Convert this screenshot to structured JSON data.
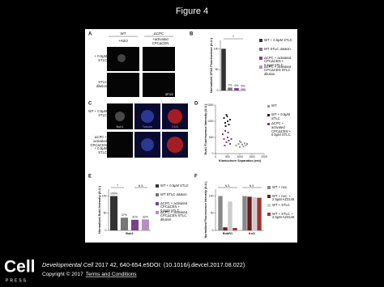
{
  "header": {
    "title": "Figure 4"
  },
  "figure": {
    "a": {
      "letter": "A",
      "groups": [
        "WT",
        "ΔCPC"
      ],
      "columns": [
        "+H2O",
        "+activated CPCΔCEN"
      ],
      "rows": [
        "+ 0.5μM STLC",
        "STLC dilution"
      ],
      "stain": "3F3/2"
    },
    "b": {
      "letter": "B",
      "chart": {
        "type": "bar",
        "ylabel": "Normalized 3F3/2 Fluorescence (A.U.)",
        "values": [
          100,
          7,
          6,
          5
        ],
        "value_labels": [
          null,
          "7%",
          "6%",
          "5%"
        ],
        "colors": [
          "#333333",
          "#777777",
          "#7b3f8c",
          "#b48ec4"
        ],
        "ylim": [
          0,
          120
        ],
        "yticks": [
          0,
          50,
          100
        ],
        "annotation": "*",
        "legend": [
          "WT + 0.5μM STLC",
          "WT STLC dilution",
          "ΔCPC + activated CPCΔCEN + 0.5μM STLC",
          "ΔCPC + activated CPCΔCEN STLC dilution"
        ]
      }
    },
    "c": {
      "letter": "C",
      "rows": [
        "WT + 0.5μM STLC",
        "ΔCPC + activated CPCΔCEN + 0.5μM STLC"
      ],
      "stains": [
        "Bub1",
        "Tubulin",
        "DNA"
      ]
    },
    "d": {
      "letter": "D",
      "chart": {
        "type": "scatter",
        "ylabel": "Bub1 Fluorescence Intensity (A.U.)",
        "xlabel": "Kinetochore Separation (nm)",
        "xlim": [
          0,
          2000
        ],
        "xticks": [
          0,
          500,
          1000,
          1500,
          2000
        ],
        "ylim": [
          0,
          1500
        ],
        "yticks": [
          0,
          500,
          1000,
          1500
        ],
        "series": [
          {
            "name": "WT",
            "color": "#999999",
            "x": [
              850,
              950,
              1000,
              1050,
              1100,
              1150,
              1200,
              1250,
              1300,
              1000
            ],
            "values": [
              250,
              300,
              200,
              350,
              280,
              220,
              320,
              260,
              300,
              380
            ]
          },
          {
            "name": "WT + 0.5μM STLC",
            "color": "#222222",
            "x": [
              350,
              400,
              450,
              500,
              550,
              600,
              420,
              480
            ],
            "values": [
              1100,
              950,
              1200,
              1000,
              900,
              1050,
              850,
              1150
            ]
          },
          {
            "name": "ΔCPC + activated CPCΔCEN + 0.5μM STLC",
            "color": "#7b3f8c",
            "x": [
              300,
              350,
              400,
              450,
              500,
              550,
              600,
              650,
              380,
              520
            ],
            "values": [
              600,
              450,
              700,
              350,
              500,
              400,
              300,
              450,
              250,
              650
            ]
          }
        ]
      }
    },
    "e": {
      "letter": "E",
      "chart": {
        "type": "bar",
        "ylabel": "Normalized Bub1 Intensity (A.U.)",
        "xlabel": "Bub1",
        "values": [
          100,
          37,
          31,
          32
        ],
        "value_labels": [
          "100%",
          "37%",
          "31%",
          "32%"
        ],
        "colors": [
          "#333333",
          "#777777",
          "#7b3f8c",
          "#b48ec4"
        ],
        "ylim": [
          0,
          120
        ],
        "yticks": [
          0,
          50,
          100
        ],
        "annotations": [
          "*",
          "N.S."
        ],
        "legend": [
          "WT + 0.5μM STLC",
          "WT STLC dilution",
          "ΔCPC + activated CPCΔCEN + 0.5μM STLC",
          "ΔCPC + activated CPCΔCEN STLC dilution"
        ]
      }
    },
    "f": {
      "letter": "F",
      "chart": {
        "type": "bar",
        "ylabel": "Normalized Fluorescence Intensity (A.U.)",
        "categories": [
          "BubR1",
          "Knl1"
        ],
        "ylim": [
          0,
          120
        ],
        "yticks": [
          0,
          50,
          100
        ],
        "annotation": "N.S.",
        "series": [
          {
            "name": "WT + noc.",
            "color": "#888888",
            "values": [
              100,
              100
            ]
          },
          {
            "name": "WT + noc. + 2.5μM AZ3146",
            "color": "#6b1a1a",
            "values": [
              9,
              98
            ]
          },
          {
            "name": "WT + STLC",
            "color": "#cccccc",
            "values": [
              84,
              97
            ]
          },
          {
            "name": "WT + STLC + 2.5μM AZ3146",
            "color": "#a33030",
            "values": [
              7,
              95
            ]
          }
        ]
      }
    }
  },
  "footer": {
    "logo": "Cell",
    "logo_sub": "PRESS",
    "journal": "Developmental Cell",
    "citation": " 2017 42, 640-654.e5DOI: (10.1016/j.devcel.2017.08.022)",
    "copyright": "Copyright © 2017",
    "link": "Terms and Conditions"
  }
}
